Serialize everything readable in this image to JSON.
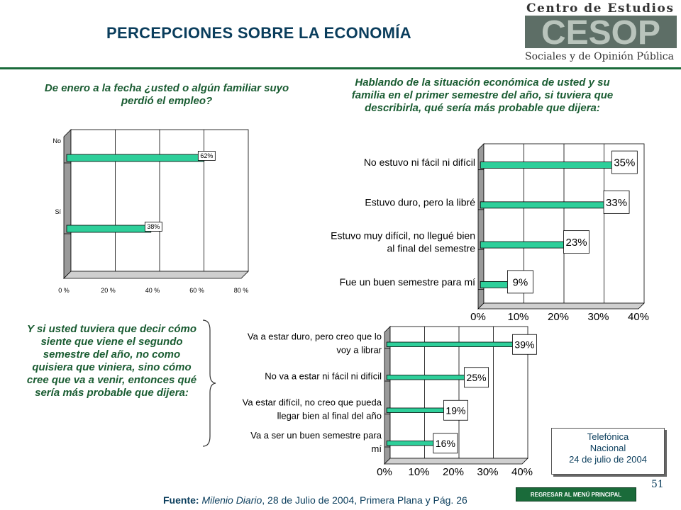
{
  "title": "PERCEPCIONES SOBRE LA ECONOMÍA",
  "logo": {
    "top_text": "Centro de Estudios",
    "mark": "CESOP",
    "bottom_text": "Sociales y de Opinión Pública"
  },
  "questions": {
    "q1": "De enero a la fecha ¿usted o algún familiar suyo perdió el empleo?",
    "q2": "Hablando de la situación económica de usted y su familia en el primer semestre del año, si tuviera que describirla, qué sería más probable que dijera:",
    "q3": "Y si usted tuviera que decir cómo siente que viene el segundo semestre del año, no como quisiera que viniera, sino cómo cree que va a venir, entonces qué sería más probable que dijera:"
  },
  "source": {
    "label": "Fuente:",
    "publication": "Milenio Diario",
    "rest": ", 28 de Julio de 2004, Primera Plana y Pág. 26"
  },
  "info_box": {
    "line1": "Telefónica",
    "line2": "Nacional",
    "line3": "24 de julio de 2004"
  },
  "menu_button_label": "REGRESAR AL MENÚ PRINCIPAL",
  "page_number": "51",
  "colors": {
    "bar": "#2ecf9a",
    "bar_stroke": "#000000",
    "title": "#0a3d5c",
    "question": "#1a5c32",
    "rule": "#1a6b3a"
  },
  "chart_data": [
    {
      "type": "bar",
      "orientation": "horizontal",
      "categories": [
        "No",
        "Sí"
      ],
      "values": [
        62,
        38
      ],
      "data_labels": [
        "62%",
        "38%"
      ],
      "xlim": [
        0,
        80
      ],
      "xticks": [
        "0 %",
        "20 %",
        "40 %",
        "60 %",
        "80 %"
      ],
      "grid": true
    },
    {
      "type": "bar",
      "orientation": "horizontal",
      "categories": [
        [
          "No estuvo ni fácil ni difícil"
        ],
        [
          "Estuvo duro, pero la libré"
        ],
        [
          "Estuvo muy difícil, no llegué bien",
          "al final del semestre"
        ],
        [
          "Fue un buen semestre para mí"
        ]
      ],
      "values": [
        35,
        33,
        23,
        9
      ],
      "data_labels": [
        "35%",
        "33%",
        "23%",
        "9%"
      ],
      "xlim": [
        0,
        40
      ],
      "xticks": [
        "0%",
        "10%",
        "20%",
        "30%",
        "40%"
      ],
      "grid": true
    },
    {
      "type": "bar",
      "orientation": "horizontal",
      "categories": [
        [
          "Va a estar duro, pero creo que lo",
          "voy a librar"
        ],
        [
          "No va a estar ni fácil ni difícil"
        ],
        [
          "Va estar difícil, no creo que pueda",
          "llegar bien al final del año"
        ],
        [
          "Va a ser un buen semestre para",
          "mí"
        ]
      ],
      "values": [
        39,
        25,
        19,
        16
      ],
      "data_labels": [
        "39%",
        "25%",
        "19%",
        "16%"
      ],
      "xlim": [
        0,
        40
      ],
      "xticks": [
        "0%",
        "10%",
        "20%",
        "30%",
        "40%"
      ],
      "grid": true
    }
  ]
}
